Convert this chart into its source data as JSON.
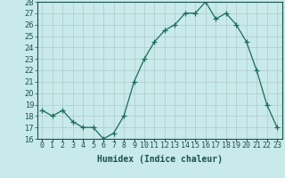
{
  "xlabel": "Humidex (Indice chaleur)",
  "x": [
    0,
    1,
    2,
    3,
    4,
    5,
    6,
    7,
    8,
    9,
    10,
    11,
    12,
    13,
    14,
    15,
    16,
    17,
    18,
    19,
    20,
    21,
    22,
    23
  ],
  "y": [
    18.5,
    18.0,
    18.5,
    17.5,
    17.0,
    17.0,
    16.0,
    16.5,
    18.0,
    21.0,
    23.0,
    24.5,
    25.5,
    26.0,
    27.0,
    27.0,
    28.0,
    26.5,
    27.0,
    26.0,
    24.5,
    22.0,
    19.0,
    17.0
  ],
  "line_color": "#1a6b5a",
  "marker": "+",
  "marker_size": 4,
  "bg_color": "#c8eaea",
  "grid_color": "#b0c8c8",
  "ylim": [
    16,
    28
  ],
  "yticks": [
    16,
    17,
    18,
    19,
    20,
    21,
    22,
    23,
    24,
    25,
    26,
    27,
    28
  ],
  "xtick_labels": [
    "0",
    "1",
    "2",
    "3",
    "4",
    "5",
    "6",
    "7",
    "8",
    "9",
    "10",
    "11",
    "12",
    "13",
    "14",
    "15",
    "16",
    "17",
    "18",
    "19",
    "20",
    "21",
    "22",
    "23"
  ],
  "tick_fontsize": 6,
  "xlabel_fontsize": 7
}
